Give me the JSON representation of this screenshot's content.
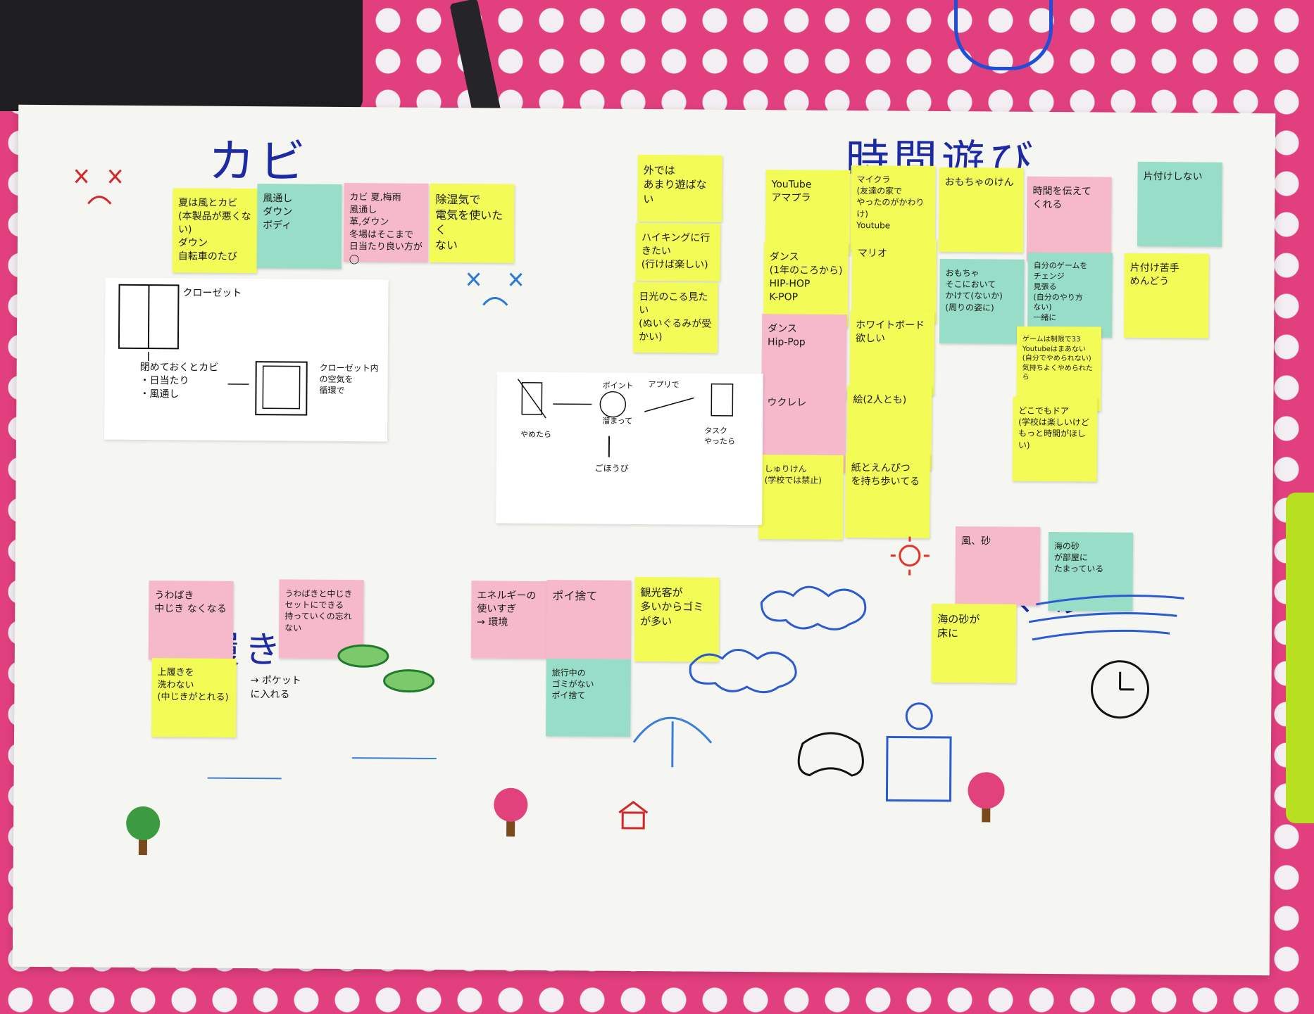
{
  "sections": {
    "kabi": "カビ",
    "jikan": "時間遊び",
    "uwabaki": "上履き",
    "kaze": "風、砂"
  },
  "kabi_notes": [
    {
      "text": "夏は風とカビ\n(本製品が悪くない)\nダウン\n自転車のたび",
      "color": "yellow"
    },
    {
      "text": "風通し\nダウン\nボディ",
      "color": "teal"
    },
    {
      "text": "カビ 夏,梅雨\n風通し\n革,ダウン\n冬場はそこまで\n日当たり良い方が◯",
      "color": "pink"
    },
    {
      "text": "除湿気で\n電気を使いたく\nない",
      "color": "yellow"
    }
  ],
  "closet_sheet": {
    "closet_label": "クローゼット",
    "steps": "閉めておくとカビ\n・日当たり\n・風通し",
    "air_text": "クローゼット内\nの空気を\n循環で"
  },
  "jikan_col1": [
    {
      "text": "外では\nあまり遊ばない",
      "color": "yellow"
    },
    {
      "text": "ハイキングに行きたい\n(行けば楽しい)",
      "color": "yellow"
    },
    {
      "text": "日光のこる見たい\n(ぬいぐるみが受かい)",
      "color": "yellow"
    }
  ],
  "jikan_notes": [
    {
      "text": "YouTube\nアマプラ",
      "color": "yellow"
    },
    {
      "text": "マイクラ\n(友達の家で\nやったのがかわりけ)\nYoutube",
      "color": "yellow"
    },
    {
      "text": "おもちゃのけん",
      "color": "yellow"
    },
    {
      "text": "時間を伝えて\nくれる",
      "color": "pink"
    },
    {
      "text": "片付けしない",
      "color": "teal"
    },
    {
      "text": "ダンス\n(1年のころから)\nHIP-HOP\nK-POP",
      "color": "yellow"
    },
    {
      "text": "マリオ",
      "color": "yellow"
    },
    {
      "text": "おもちゃ\nそこにおいて\nかけて(ないか)\n(周りの姿に)",
      "color": "teal"
    },
    {
      "text": "自分のゲームを\nチェンジ\n見張る\n(自分のやり方\nない)\n一緒に",
      "color": "teal"
    },
    {
      "text": "片付け苦手\nめんどう",
      "color": "yellow"
    },
    {
      "text": "ダンス\nHip-Pop",
      "color": "pink"
    },
    {
      "text": "ホワイトボード\n欲しい",
      "color": "yellow"
    },
    {
      "text": "ゲームは制限で33\nYoutubeはまあない\n(自分でやめられない)\n気持ちよくやめられたら",
      "color": "yellow"
    },
    {
      "text": "ウクレレ",
      "color": "pink"
    },
    {
      "text": "絵(2人とも)",
      "color": "yellow"
    },
    {
      "text": "どこでもドア\n(学校は楽しいけど\nもっと時間がほしい)",
      "color": "yellow"
    },
    {
      "text": "しゅりけん\n(学校では禁止)",
      "color": "yellow"
    },
    {
      "text": "紙とえんぴつ\nを持ち歩いてる",
      "color": "yellow"
    }
  ],
  "point_sheet": {
    "quit": "やめたら",
    "point": "ポイント",
    "app": "アプリで",
    "collect": "溜まって",
    "task": "タスク\nやったら",
    "reward": "ごほうび"
  },
  "uwabaki_notes": [
    {
      "text": "うわばき\n中じき なくなる",
      "color": "pink"
    },
    {
      "text": "うわばきと中じき\nセットにできる\n持っていくの忘れ\nない",
      "color": "pink"
    },
    {
      "text": "上履きを\n洗わない\n(中じきがとれる)",
      "color": "yellow"
    }
  ],
  "uwabaki_arrow_text": "→ ポケット\nに入れる",
  "energy_notes": [
    {
      "text": "エネルギーの\n使いすぎ\n→ 環境",
      "color": "pink"
    },
    {
      "text": "ポイ捨て",
      "color": "pink"
    },
    {
      "text": "観光客が\n多いからゴミ\nが多い",
      "color": "yellow"
    },
    {
      "text": "旅行中の\nゴミがない\nポイ捨て",
      "color": "teal"
    }
  ],
  "kaze_notes": [
    {
      "text": "風、砂",
      "color": "pink"
    },
    {
      "text": "海の砂\nが部屋に\nたまっている",
      "color": "teal"
    },
    {
      "text": "海の砂が\n床に",
      "color": "yellow"
    }
  ],
  "colors": {
    "yellow": "#f3fb56",
    "pink": "#f6b9ca",
    "teal": "#98ddc7",
    "marker_blue": "#1c2aa3",
    "background_pink": "#e23f7f"
  }
}
